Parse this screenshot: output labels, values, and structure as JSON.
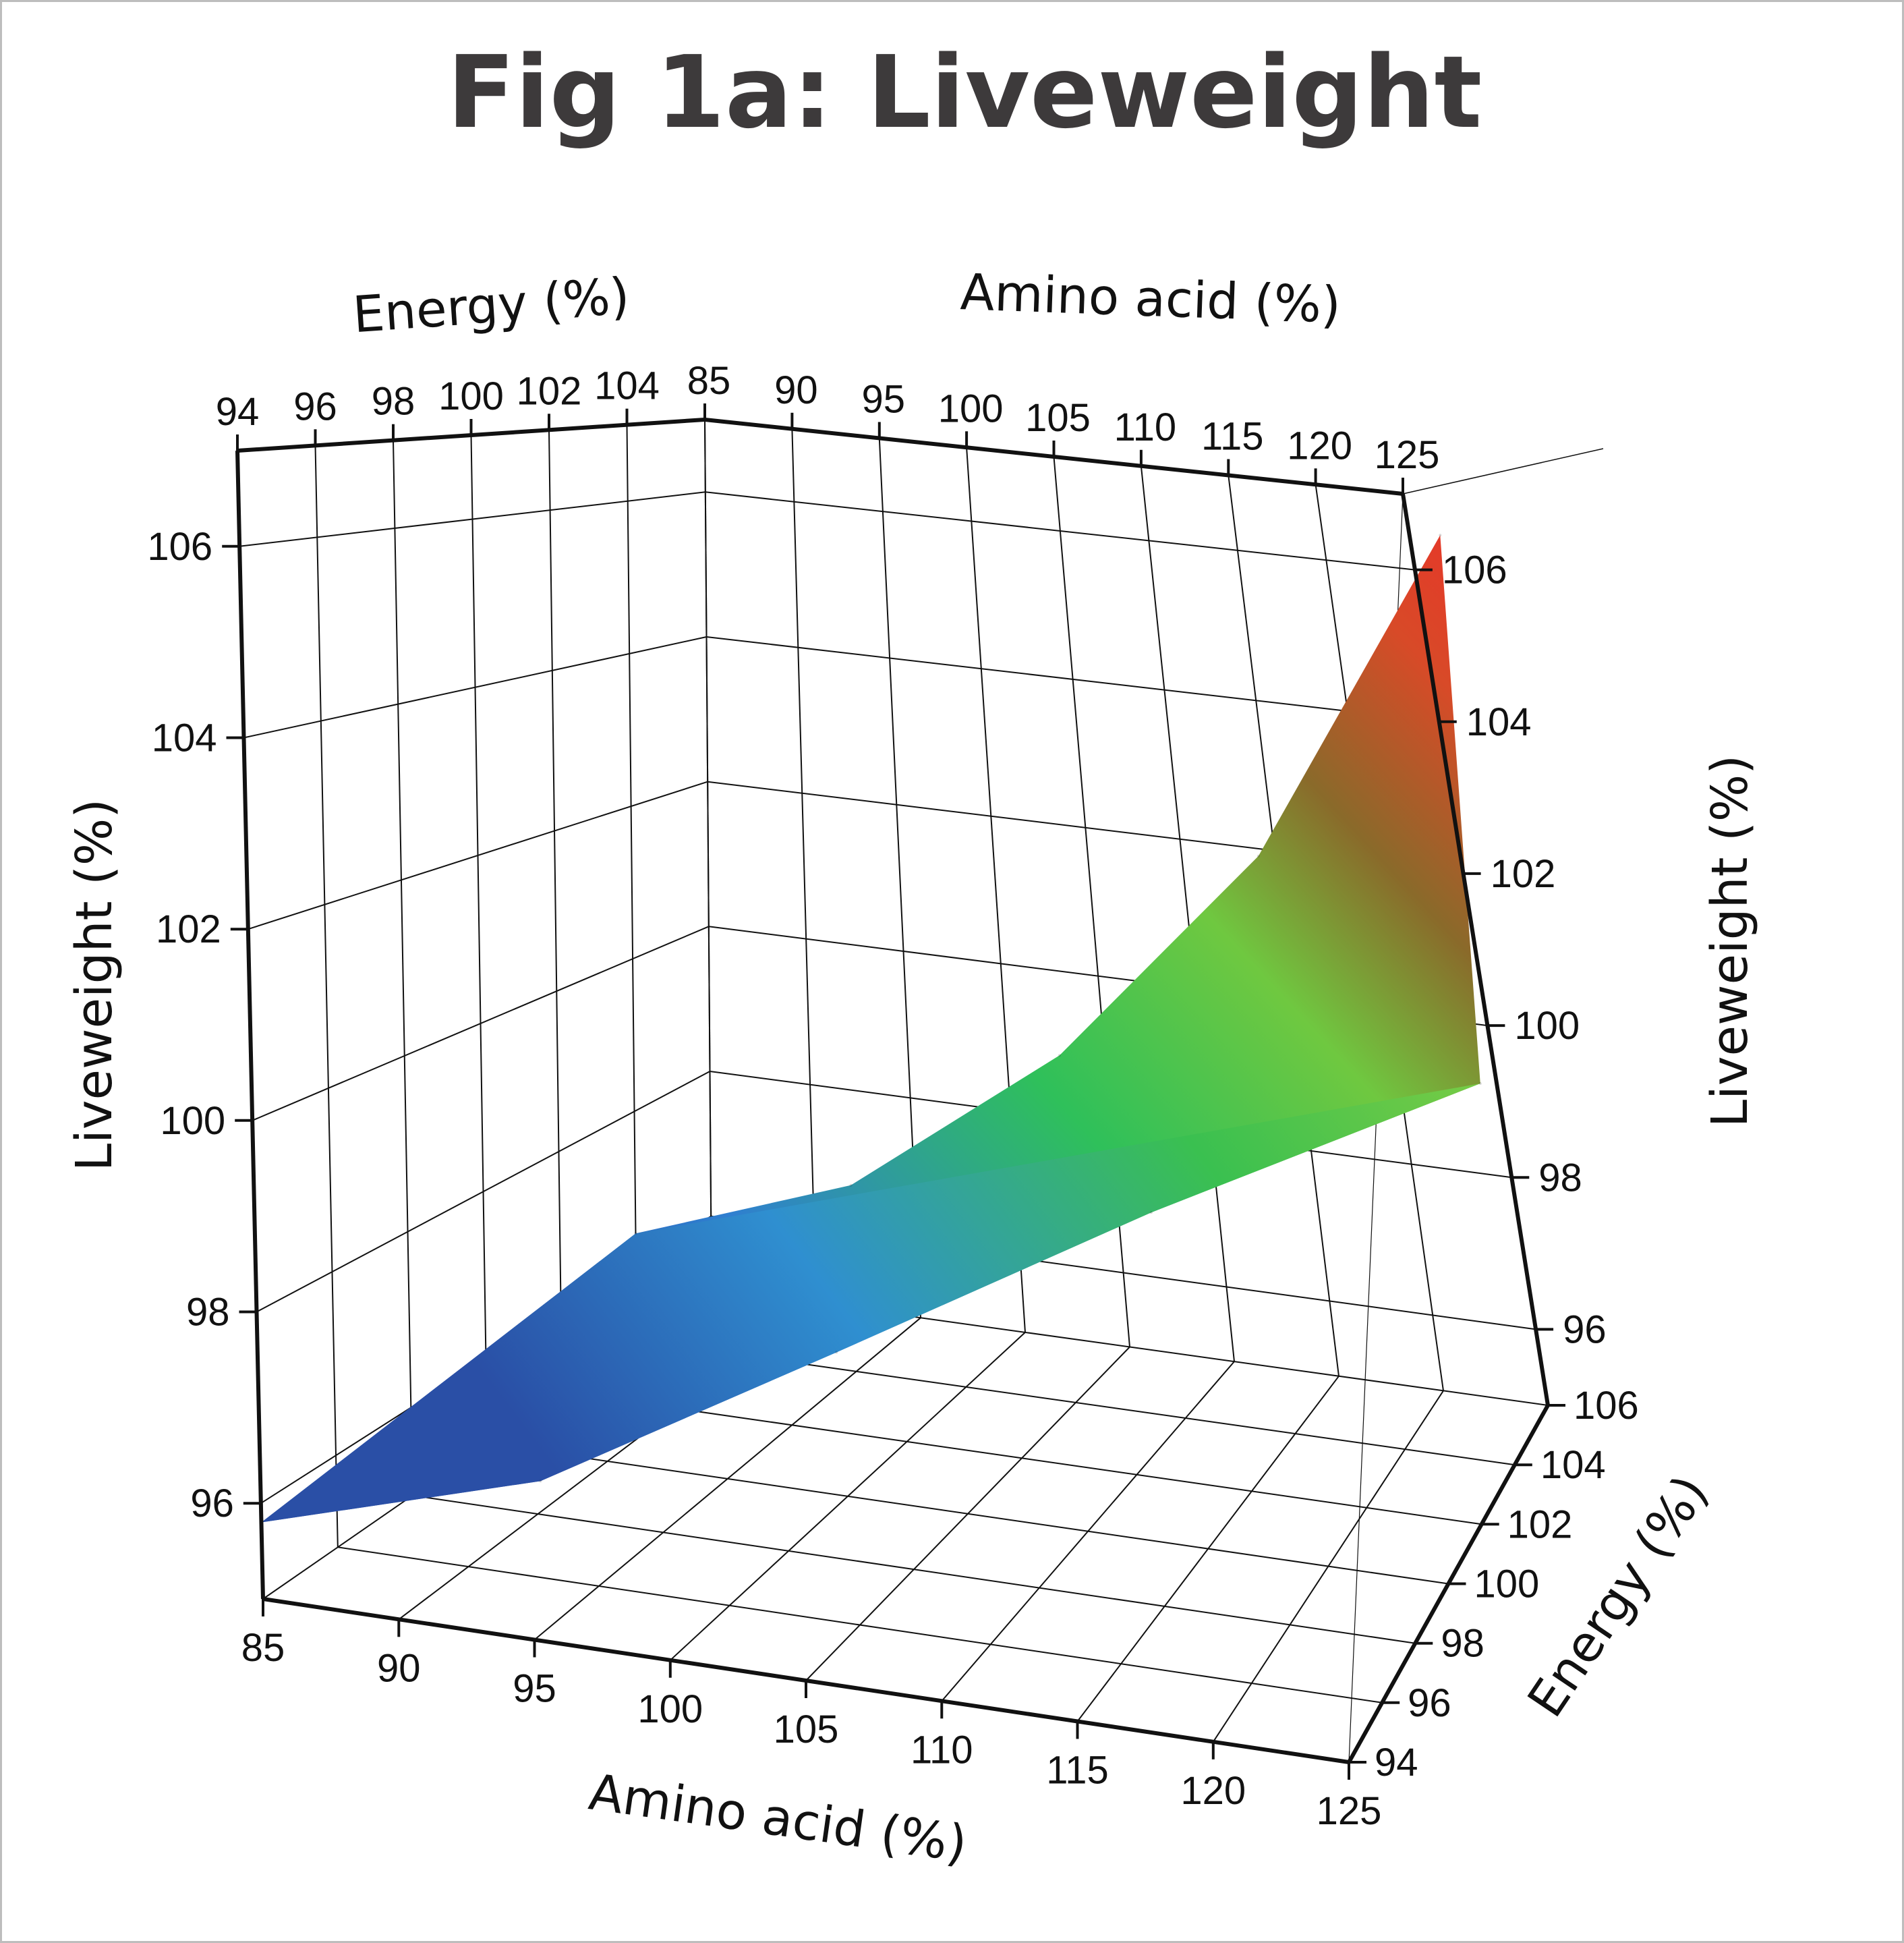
{
  "title": "Fig 1a: Liveweight",
  "axes": {
    "amino_label": "Amino acid (%)",
    "energy_label": "Energy (%)",
    "liveweight_label": "Liveweight (%)",
    "amino_ticks": [
      "85",
      "90",
      "95",
      "100",
      "105",
      "110",
      "115",
      "120",
      "125"
    ],
    "energy_ticks": [
      "94",
      "96",
      "98",
      "100",
      "102",
      "104",
      "106"
    ],
    "energy_ticks_top": [
      "94",
      "96",
      "98",
      "100",
      "102",
      "104"
    ],
    "liveweight_ticks_left": [
      "96",
      "98",
      "100",
      "102",
      "104",
      "106"
    ],
    "liveweight_ticks_right": [
      "96",
      "98",
      "100",
      "102",
      "104",
      "106"
    ]
  },
  "chart_data": {
    "type": "surface",
    "title": "Fig 1a: Liveweight",
    "xlabel": "Amino acid (%)",
    "ylabel": "Energy (%)",
    "zlabel": "Liveweight (%)",
    "x_range": [
      85,
      125
    ],
    "y_range": [
      94,
      106
    ],
    "z_range": [
      95,
      107
    ],
    "colorscale": [
      "#2a4fa6",
      "#2f7fd0",
      "#2fc05a",
      "#7fd040",
      "#8a6a2a",
      "#ef3b2c"
    ],
    "surface_points": [
      {
        "amino_acid": 85,
        "energy": 94,
        "liveweight": 95.8
      },
      {
        "amino_acid": 85,
        "energy": 104,
        "liveweight": 96.4
      },
      {
        "amino_acid": 95,
        "energy": 94,
        "liveweight": 96.6
      },
      {
        "amino_acid": 95,
        "energy": 104,
        "liveweight": 97.4
      },
      {
        "amino_acid": 105,
        "energy": 94,
        "liveweight": 98.2
      },
      {
        "amino_acid": 105,
        "energy": 104,
        "liveweight": 99.4
      },
      {
        "amino_acid": 115,
        "energy": 94,
        "liveweight": 99.8
      },
      {
        "amino_acid": 115,
        "energy": 104,
        "liveweight": 102.2
      },
      {
        "amino_acid": 125,
        "energy": 94,
        "liveweight": 101.2
      },
      {
        "amino_acid": 125,
        "energy": 104,
        "liveweight": 106.4
      }
    ]
  }
}
